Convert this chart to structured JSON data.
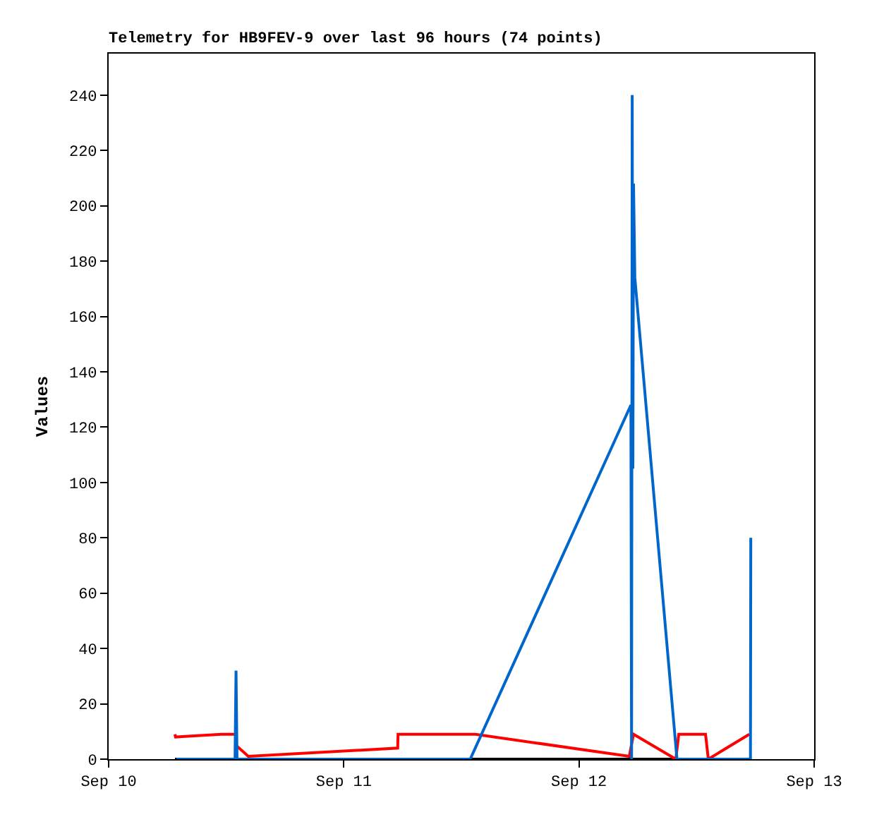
{
  "chart_data": {
    "type": "line",
    "title": "Telemetry for HB9FEV-9 over last 96 hours (74 points)",
    "ylabel": "Values",
    "xlim": [
      "--09-10",
      "--09-13"
    ],
    "xticks": [
      {
        "value": "--09-10",
        "label": "Sep 10"
      },
      {
        "value": "--09-11",
        "label": "Sep 11"
      },
      {
        "value": "--09-12",
        "label": "Sep 12"
      },
      {
        "value": "--09-13",
        "label": "Sep 13"
      }
    ],
    "ylim": [
      0,
      255
    ],
    "yticks": [
      0,
      20,
      40,
      60,
      80,
      100,
      120,
      140,
      160,
      180,
      200,
      220,
      240
    ],
    "grid": false,
    "marker": "none",
    "line_style": "solid",
    "series": [
      {
        "color": "#000000",
        "x": [
          "--09-10T06:46",
          "--09-12T17:32"
        ],
        "values": [
          0,
          0
        ]
      },
      {
        "color": "#ff0000",
        "x": [
          "--09-10T06:46",
          "--09-10T06:50",
          "--09-10T11:30",
          "--09-10T12:58",
          "--09-10T13:00",
          "--09-10T14:15",
          "--09-11T05:30",
          "--09-11T05:32",
          "--09-11T13:26",
          "--09-12T05:08",
          "--09-12T05:34",
          "--09-12T09:53",
          "--09-12T10:11",
          "--09-12T12:55",
          "--09-12T13:12",
          "--09-12T17:23"
        ],
        "values": [
          9,
          8,
          9,
          9,
          5,
          1,
          4,
          9,
          9,
          1,
          9,
          0,
          9,
          9,
          0,
          9
        ]
      },
      {
        "color": "#0066cc",
        "x": [
          "--09-10T06:54",
          "--09-10T12:54",
          "--09-10T13:00",
          "--09-10T13:06",
          "--09-11T12:54",
          "--09-12T05:18",
          "--09-12T05:22",
          "--09-12T05:26",
          "--09-12T05:30",
          "--09-12T05:34",
          "--09-12T05:42",
          "--09-12T10:00",
          "--09-12T17:30",
          "--09-12T17:32"
        ],
        "values": [
          0,
          0,
          32,
          0,
          0,
          128,
          0,
          240,
          105,
          208,
          174,
          0,
          0,
          80
        ]
      }
    ]
  }
}
